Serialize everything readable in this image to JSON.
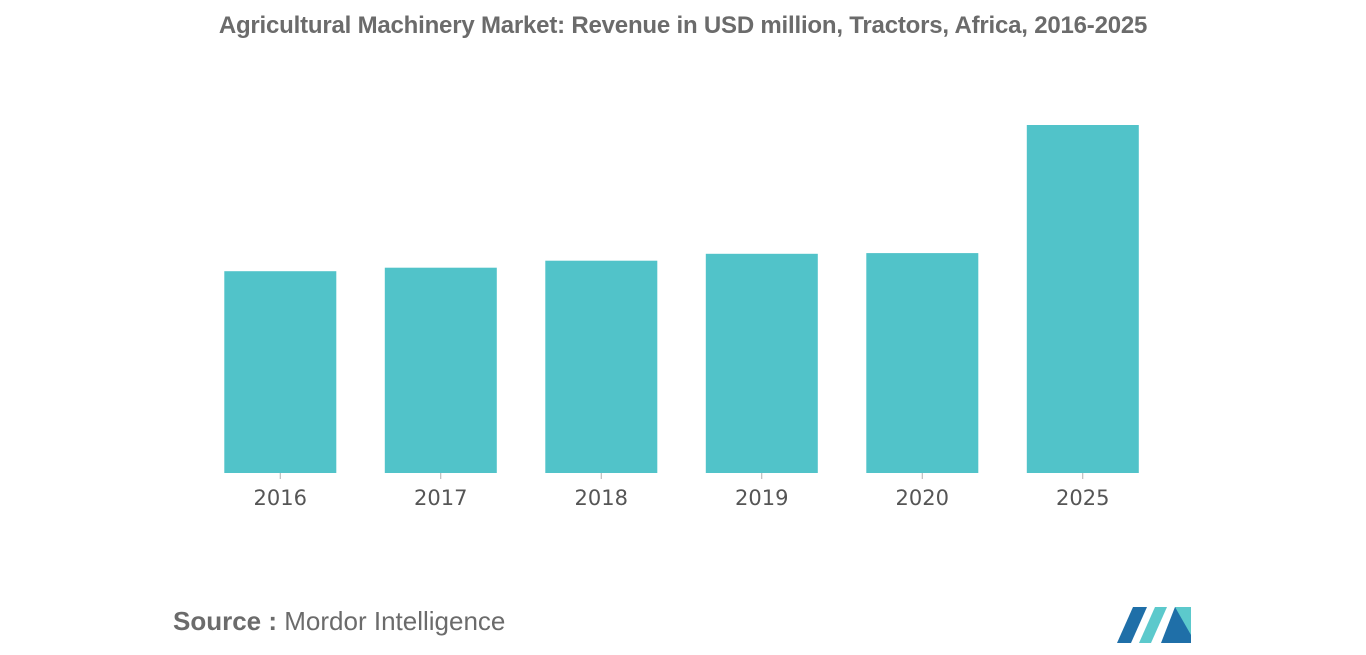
{
  "chart_data": {
    "type": "bar",
    "title": "Agricultural Machinery Market: Revenue in USD million, Tractors, Africa, 2016-2025",
    "categories": [
      "2016",
      "2017",
      "2018",
      "2019",
      "2020",
      "2025"
    ],
    "values": [
      58,
      59,
      61,
      63,
      63.2,
      100
    ],
    "xlabel": "",
    "ylabel": "",
    "ylim": [
      0,
      100
    ],
    "grid": false,
    "legend": "none",
    "bar_color": "#51C3C9"
  },
  "source": {
    "label": "Source :",
    "name": "Mordor Intelligence"
  },
  "colors": {
    "text": "#6b6b6b",
    "bar": "#51C3C9",
    "logo_dark": "#1f6fa8",
    "logo_light": "#5cc9cc"
  },
  "logo": {
    "icon": "mordor-intelligence-logo"
  }
}
